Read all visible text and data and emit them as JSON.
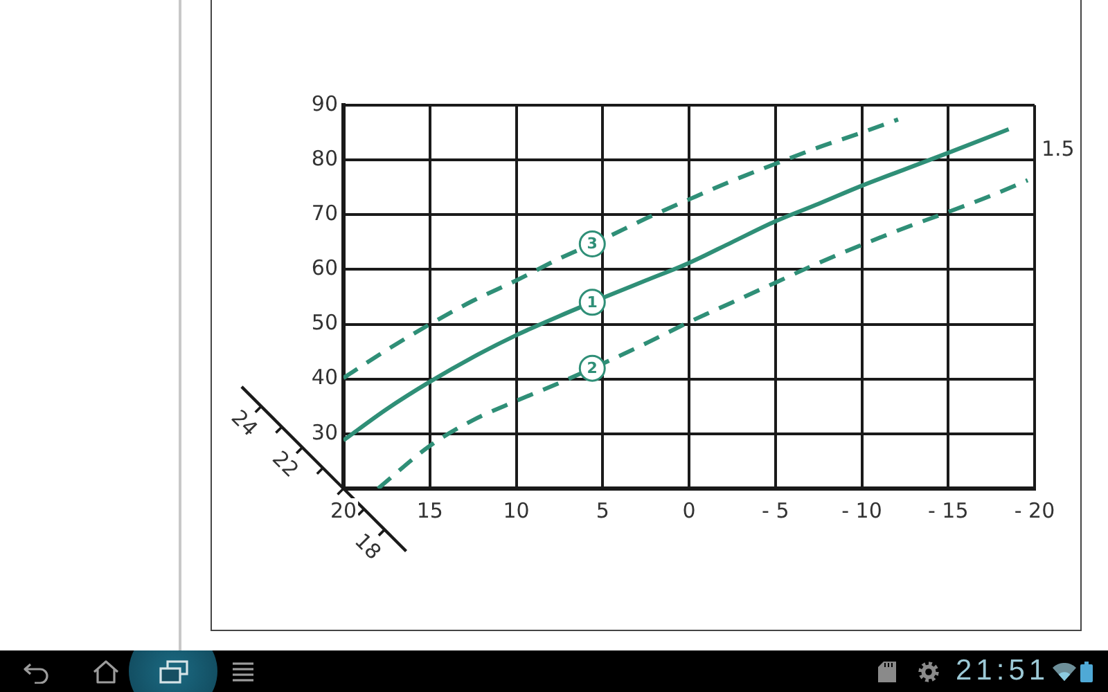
{
  "chart_data": {
    "type": "line",
    "xlim": [
      20,
      -20
    ],
    "xticks": [
      20,
      15,
      10,
      5,
      0,
      {
        "value": -5,
        "label": "- 5"
      },
      {
        "value": -10,
        "label": "- 10"
      },
      {
        "value": -15,
        "label": "- 15"
      },
      {
        "value": -20,
        "label": "- 20"
      }
    ],
    "ylim": [
      20,
      90
    ],
    "yticks": [
      30,
      40,
      50,
      60,
      70,
      80,
      90
    ],
    "grid": true,
    "marker": "none",
    "series": [
      {
        "name": "1",
        "color": "#2f8f77",
        "line_style": "solid",
        "x": [
          20,
          17.5,
          15,
          12.5,
          10,
          7.5,
          5,
          2.5,
          0,
          -2.5,
          -5,
          -7.5,
          -10,
          -12.5,
          -15,
          -18.5
        ],
        "values": [
          28.8,
          34.5,
          39.5,
          44,
          48,
          51.5,
          54.8,
          58,
          61.2,
          65,
          68.8,
          72,
          75.3,
          78.3,
          81.3,
          85.6
        ]
      },
      {
        "name": "2",
        "color": "#2f8f77",
        "line_style": "dashed",
        "x": [
          18,
          15,
          12.5,
          10,
          7.5,
          5,
          2.5,
          0,
          -2.5,
          -5,
          -7.5,
          -10,
          -12.5,
          -15,
          -17.5,
          -19.6
        ],
        "values": [
          20,
          27.8,
          32.5,
          36,
          39.3,
          42.8,
          46.5,
          50.4,
          54,
          57.6,
          61.2,
          64.5,
          67.6,
          70.5,
          73.5,
          76.3
        ]
      },
      {
        "name": "3",
        "color": "#2f8f77",
        "line_style": "dashed",
        "x": [
          20,
          17.5,
          15,
          12.5,
          10,
          7.5,
          5,
          2.5,
          0,
          -2.5,
          -5,
          -7.5,
          -10,
          -12.1
        ],
        "values": [
          40.2,
          45.3,
          50,
          54.3,
          58,
          62,
          65.5,
          69.3,
          72.8,
          76.2,
          79.3,
          82.3,
          85,
          87.4
        ]
      }
    ],
    "annotations": [
      "1.5",
      "24",
      "22",
      "18",
      "21:51"
    ]
  }
}
